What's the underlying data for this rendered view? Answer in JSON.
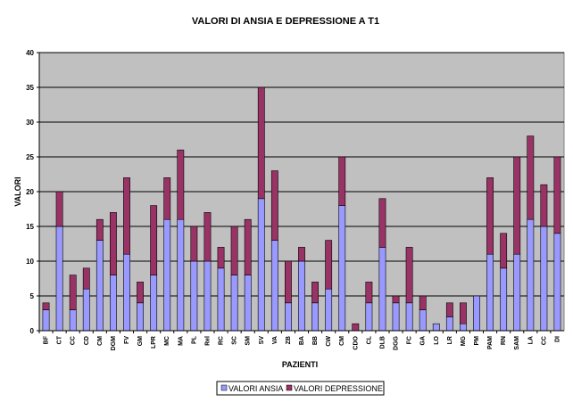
{
  "chart_data": {
    "type": "bar",
    "stacked": true,
    "title": "VALORI DI ANSIA E DEPRESSIONE A T1",
    "xlabel": "PAZIENTI",
    "ylabel": "VALORI",
    "ylim": [
      0,
      40
    ],
    "yticks": [
      0,
      5,
      10,
      15,
      20,
      25,
      30,
      35,
      40
    ],
    "grid": true,
    "legend_position": "bottom",
    "categories": [
      "BF",
      "CT",
      "CC",
      "CD",
      "CM",
      "DGM",
      "FV",
      "GM",
      "LPR",
      "MC",
      "MA",
      "PL",
      "Rel",
      "RC",
      "SC",
      "SM",
      "SV",
      "VA",
      "ZB",
      "BA",
      "BB",
      "CW",
      "CM",
      "CDO",
      "CL",
      "DLB",
      "DGG",
      "FC",
      "GA",
      "LO",
      "LR",
      "MG",
      "PM",
      "PAM",
      "RN",
      "SAM",
      "LA",
      "CC",
      "DI"
    ],
    "series": [
      {
        "name": "VALORI ANSIA",
        "color": "#9999FF",
        "values": [
          3,
          15,
          3,
          6,
          13,
          8,
          11,
          4,
          8,
          16,
          16,
          10,
          10,
          9,
          8,
          8,
          19,
          13,
          4,
          10,
          4,
          6,
          18,
          0,
          4,
          12,
          4,
          4,
          3,
          1,
          2,
          1,
          5,
          11,
          9,
          11,
          16,
          15,
          14
        ]
      },
      {
        "name": "VALORI DEPRESSIONE",
        "color": "#993366",
        "values": [
          1,
          5,
          5,
          3,
          3,
          9,
          11,
          3,
          10,
          6,
          10,
          5,
          7,
          3,
          7,
          8,
          16,
          10,
          6,
          2,
          3,
          7,
          7,
          1,
          3,
          7,
          1,
          8,
          2,
          0,
          2,
          3,
          0,
          11,
          5,
          14,
          12,
          6,
          11
        ]
      }
    ]
  }
}
